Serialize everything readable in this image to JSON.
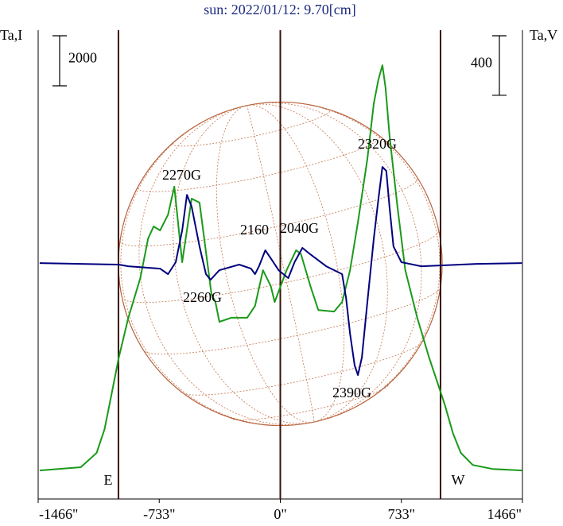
{
  "chart_data": {
    "type": "line",
    "title": "sun: 2022/01/12: 9.70[cm]",
    "y_label": "Ta,I",
    "y2_label": "Ta,V",
    "xlim": [
      -1466,
      1466
    ],
    "xticks": [
      {
        "value": -1466,
        "label": "-1466\""
      },
      {
        "value": -733,
        "label": "-733\""
      },
      {
        "value": 0,
        "label": "0\""
      },
      {
        "value": 733,
        "label": "733\""
      },
      {
        "value": 1466,
        "label": "1466\""
      }
    ],
    "ylim": [
      -1140,
      17590
    ],
    "y2lim": [
      -1580,
      1570
    ],
    "scale_bars": [
      {
        "value": 2000,
        "axis": "y"
      },
      {
        "value": 400,
        "axis": "y2"
      }
    ],
    "vlines": [
      -980,
      0,
      970
    ],
    "limb_labels": [
      "E",
      "W"
    ],
    "annotations": [
      "2270G",
      "2160",
      "2040G",
      "2260G",
      "2320G",
      "2390G"
    ],
    "series": [
      {
        "name": "I",
        "color": "#1a9a1a",
        "axis": "y",
        "x": [
          -1457,
          -1208,
          -1112,
          -1064,
          -1016,
          -978,
          -920,
          -848,
          -800,
          -767,
          -728,
          -680,
          -642,
          -594,
          -537,
          -489,
          -417,
          -393,
          -369,
          -297,
          -201,
          -153,
          -105,
          -58,
          -34,
          38,
          96,
          125,
          182,
          230,
          326,
          374,
          422,
          470,
          527,
          566,
          594,
          618,
          637,
          661,
          709,
          757,
          829,
          901,
          949,
          997,
          1045,
          1093,
          1165,
          1284,
          1462
        ],
        "values": [
          0,
          130,
          700,
          1650,
          3240,
          4510,
          6100,
          7680,
          9270,
          9750,
          9590,
          10220,
          11340,
          8320,
          10860,
          10700,
          7050,
          6730,
          5940,
          6100,
          6100,
          6570,
          8000,
          7370,
          6730,
          8000,
          8800,
          8640,
          7370,
          6410,
          6350,
          6730,
          8000,
          9910,
          12450,
          14670,
          15620,
          16190,
          15300,
          13400,
          10540,
          8000,
          6100,
          4510,
          3560,
          2600,
          1490,
          700,
          220,
          60,
          0
        ]
      },
      {
        "name": "V",
        "color": "#00007f",
        "axis": "y2",
        "x": [
          -1457,
          -978,
          -920,
          -728,
          -680,
          -633,
          -594,
          -565,
          -537,
          -489,
          -450,
          -422,
          -369,
          -249,
          -177,
          -153,
          -129,
          -91,
          -58,
          -10,
          48,
          86,
          134,
          182,
          278,
          374,
          398,
          422,
          450,
          470,
          494,
          527,
          566,
          594,
          618,
          642,
          661,
          685,
          733,
          853,
          968,
          1188,
          1462
        ],
        "values": [
          5,
          -5,
          -16,
          -32,
          -69,
          11,
          224,
          464,
          384,
          117,
          -69,
          -107,
          -43,
          -5,
          -32,
          -69,
          -16,
          91,
          37,
          -43,
          -96,
          11,
          107,
          64,
          -16,
          -69,
          -229,
          -469,
          -683,
          -747,
          -629,
          -256,
          171,
          437,
          651,
          624,
          384,
          117,
          11,
          -16,
          -11,
          0,
          5
        ]
      }
    ]
  }
}
